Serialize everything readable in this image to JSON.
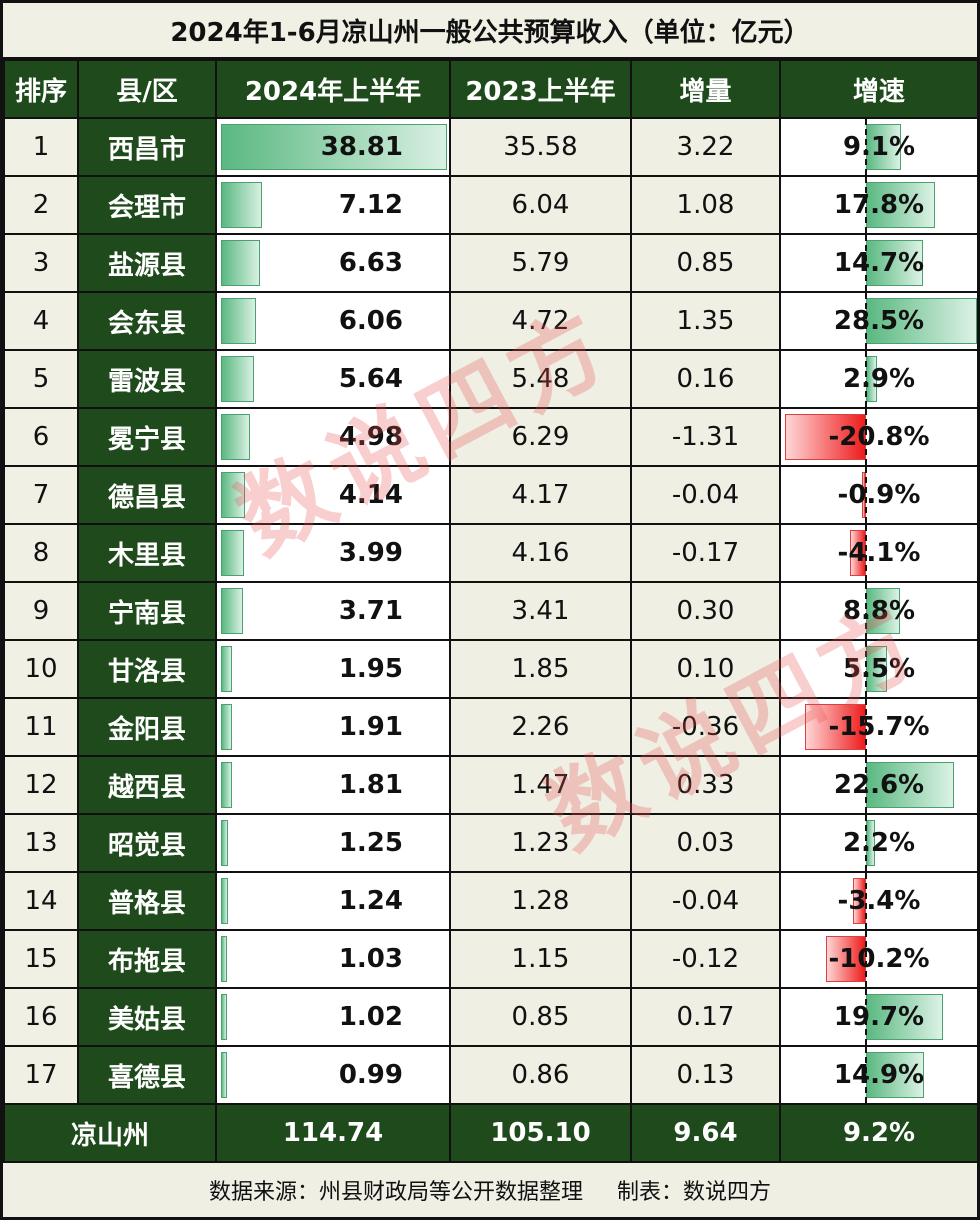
{
  "title": "2024年1-6月凉山州一般公共预算收入（单位：亿元）",
  "headers": [
    "排序",
    "县/区",
    "2024年上半年",
    "2023上半年",
    "增量",
    "增速"
  ],
  "rows": [
    {
      "rank": "1",
      "county": "西昌市",
      "v2024": "38.81",
      "v2023": "35.58",
      "inc": "3.22",
      "growth": "9.1%"
    },
    {
      "rank": "2",
      "county": "会理市",
      "v2024": "7.12",
      "v2023": "6.04",
      "inc": "1.08",
      "growth": "17.8%"
    },
    {
      "rank": "3",
      "county": "盐源县",
      "v2024": "6.63",
      "v2023": "5.79",
      "inc": "0.85",
      "growth": "14.7%"
    },
    {
      "rank": "4",
      "county": "会东县",
      "v2024": "6.06",
      "v2023": "4.72",
      "inc": "1.35",
      "growth": "28.5%"
    },
    {
      "rank": "5",
      "county": "雷波县",
      "v2024": "5.64",
      "v2023": "5.48",
      "inc": "0.16",
      "growth": "2.9%"
    },
    {
      "rank": "6",
      "county": "冕宁县",
      "v2024": "4.98",
      "v2023": "6.29",
      "inc": "-1.31",
      "growth": "-20.8%"
    },
    {
      "rank": "7",
      "county": "德昌县",
      "v2024": "4.14",
      "v2023": "4.17",
      "inc": "-0.04",
      "growth": "-0.9%"
    },
    {
      "rank": "8",
      "county": "木里县",
      "v2024": "3.99",
      "v2023": "4.16",
      "inc": "-0.17",
      "growth": "-4.1%"
    },
    {
      "rank": "9",
      "county": "宁南县",
      "v2024": "3.71",
      "v2023": "3.41",
      "inc": "0.30",
      "growth": "8.8%"
    },
    {
      "rank": "10",
      "county": "甘洛县",
      "v2024": "1.95",
      "v2023": "1.85",
      "inc": "0.10",
      "growth": "5.5%"
    },
    {
      "rank": "11",
      "county": "金阳县",
      "v2024": "1.91",
      "v2023": "2.26",
      "inc": "-0.36",
      "growth": "-15.7%"
    },
    {
      "rank": "12",
      "county": "越西县",
      "v2024": "1.81",
      "v2023": "1.47",
      "inc": "0.33",
      "growth": "22.6%"
    },
    {
      "rank": "13",
      "county": "昭觉县",
      "v2024": "1.25",
      "v2023": "1.23",
      "inc": "0.03",
      "growth": "2.2%"
    },
    {
      "rank": "14",
      "county": "普格县",
      "v2024": "1.24",
      "v2023": "1.28",
      "inc": "-0.04",
      "growth": "-3.4%"
    },
    {
      "rank": "15",
      "county": "布拖县",
      "v2024": "1.03",
      "v2023": "1.15",
      "inc": "-0.12",
      "growth": "-10.2%"
    },
    {
      "rank": "16",
      "county": "美姑县",
      "v2024": "1.02",
      "v2023": "0.85",
      "inc": "0.17",
      "growth": "19.7%"
    },
    {
      "rank": "17",
      "county": "喜德县",
      "v2024": "0.99",
      "v2023": "0.86",
      "inc": "0.13",
      "growth": "14.9%"
    }
  ],
  "total": {
    "label": "凉山州",
    "v2024": "114.74",
    "v2023": "105.10",
    "inc": "9.64",
    "growth": "9.2%"
  },
  "footer": {
    "source": "数据来源：州县财政局等公开数据整理",
    "author": "制表：数说四方"
  },
  "watermark": "数说四方",
  "colors": {
    "header_green": "#1e4a1c",
    "bar_green": "#5ab881",
    "bar_red": "#ee1c1c",
    "background": "#efefe4"
  },
  "chart_data": {
    "type": "table",
    "title": "2024年1-6月凉山州一般公共预算收入（单位：亿元）",
    "columns": [
      "排序",
      "县/区",
      "2024年上半年",
      "2023上半年",
      "增量",
      "增速"
    ],
    "categories": [
      "西昌市",
      "会理市",
      "盐源县",
      "会东县",
      "雷波县",
      "冕宁县",
      "德昌县",
      "木里县",
      "宁南县",
      "甘洛县",
      "金阳县",
      "越西县",
      "昭觉县",
      "普格县",
      "布拖县",
      "美姑县",
      "喜德县"
    ],
    "series": [
      {
        "name": "2024年上半年",
        "values": [
          38.81,
          7.12,
          6.63,
          6.06,
          5.64,
          4.98,
          4.14,
          3.99,
          3.71,
          1.95,
          1.91,
          1.81,
          1.25,
          1.24,
          1.03,
          1.02,
          0.99
        ]
      },
      {
        "name": "2023上半年",
        "values": [
          35.58,
          6.04,
          5.79,
          4.72,
          5.48,
          6.29,
          4.17,
          4.16,
          3.41,
          1.85,
          2.26,
          1.47,
          1.23,
          1.28,
          1.15,
          0.85,
          0.86
        ]
      },
      {
        "name": "增量",
        "values": [
          3.22,
          1.08,
          0.85,
          1.35,
          0.16,
          -1.31,
          -0.04,
          -0.17,
          0.3,
          0.1,
          -0.36,
          0.33,
          0.03,
          -0.04,
          -0.12,
          0.17,
          0.13
        ]
      },
      {
        "name": "增速(%)",
        "values": [
          9.1,
          17.8,
          14.7,
          28.5,
          2.9,
          -20.8,
          -0.9,
          -4.1,
          8.8,
          5.5,
          -15.7,
          22.6,
          2.2,
          -3.4,
          -10.2,
          19.7,
          14.9
        ]
      }
    ],
    "total": {
      "label": "凉山州",
      "2024年上半年": 114.74,
      "2023上半年": 105.1,
      "增量": 9.64,
      "增速(%)": 9.2
    },
    "notes": "In-cell data bars: green gradient bars for 2024 values; diverging green/red bars around a dashed zero axis for growth rate.",
    "source": "数据来源：州县财政局等公开数据整理",
    "author": "制表：数说四方"
  }
}
